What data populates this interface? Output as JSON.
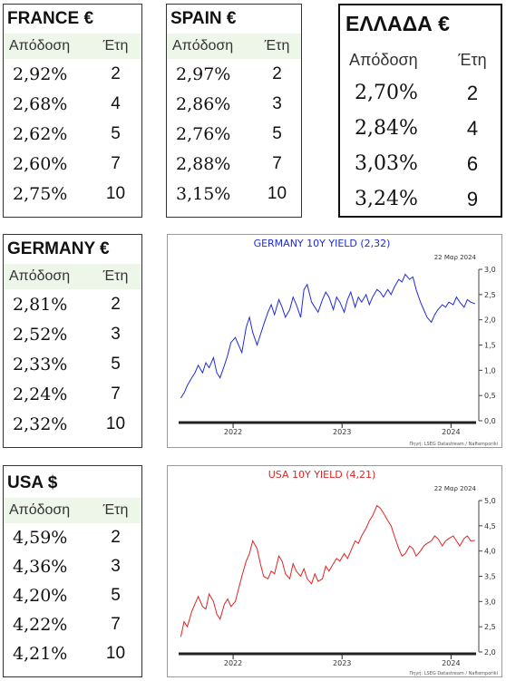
{
  "tables": [
    {
      "id": "france",
      "title": "FRANCE €",
      "h1": "Απόδοση",
      "h2": "Έτη",
      "rows": [
        [
          "2,92%",
          "2"
        ],
        [
          "2,68%",
          "4"
        ],
        [
          "2,62%",
          "5"
        ],
        [
          "2,60%",
          "7"
        ],
        [
          "2,75%",
          "10"
        ]
      ]
    },
    {
      "id": "spain",
      "title": "SPAIN €",
      "h1": "Απόδοση",
      "h2": "Έτη",
      "rows": [
        [
          "2,97%",
          "2"
        ],
        [
          "2,86%",
          "3"
        ],
        [
          "2,76%",
          "5"
        ],
        [
          "2,88%",
          "7"
        ],
        [
          "3,15%",
          "10"
        ]
      ]
    },
    {
      "id": "greece",
      "title": "ΕΛΛΑΔΑ €",
      "h1": "Απόδοση",
      "h2": "Έτη",
      "rows": [
        [
          "2,70%",
          "2"
        ],
        [
          "2,84%",
          "4"
        ],
        [
          "3,03%",
          "6"
        ],
        [
          "3,24%",
          "9"
        ]
      ]
    },
    {
      "id": "germany",
      "title": "GERMANY €",
      "h1": "Απόδοση",
      "h2": "Έτη",
      "rows": [
        [
          "2,81%",
          "2"
        ],
        [
          "2,52%",
          "3"
        ],
        [
          "2,33%",
          "5"
        ],
        [
          "2,24%",
          "7"
        ],
        [
          "2,32%",
          "10"
        ]
      ]
    },
    {
      "id": "usa",
      "title": "USA $",
      "h1": "Απόδοση",
      "h2": "Έτη",
      "rows": [
        [
          "4,59%",
          "2"
        ],
        [
          "4,36%",
          "3"
        ],
        [
          "4,20%",
          "5"
        ],
        [
          "4,22%",
          "7"
        ],
        [
          "4,21%",
          "10"
        ]
      ]
    }
  ],
  "chart_data": [
    {
      "type": "line",
      "title": "GERMANY 10Y YIELD  (2,32)",
      "date": "22 Μαρ 2024",
      "source": "Πηγή: LSEG Datastream / Naftemporiki",
      "color": "#1f2bd6",
      "xlim": [
        2021.5,
        2024.23
      ],
      "ylim": [
        0,
        3
      ],
      "y_ticks": [
        "0,0",
        "0,5",
        "1,0",
        "1,5",
        "2,0",
        "2,5",
        "3,0"
      ],
      "x_ticks": [
        {
          "label": "2022",
          "x": 2022
        },
        {
          "label": "2023",
          "x": 2023
        },
        {
          "label": "2024",
          "x": 2024
        }
      ],
      "series": [
        {
          "x": [
            2021.52,
            2021.55,
            2021.58,
            2021.62,
            2021.65,
            2021.68,
            2021.72,
            2021.75,
            2021.78,
            2021.82,
            2021.85,
            2021.88,
            2021.92,
            2021.95,
            2021.98,
            2022.02,
            2022.05,
            2022.08,
            2022.12,
            2022.15,
            2022.18,
            2022.22,
            2022.25,
            2022.28,
            2022.32,
            2022.35,
            2022.38,
            2022.42,
            2022.45,
            2022.48,
            2022.52,
            2022.55,
            2022.58,
            2022.62,
            2022.65,
            2022.68,
            2022.72,
            2022.75,
            2022.78,
            2022.82,
            2022.85,
            2022.88,
            2022.92,
            2022.95,
            2022.98,
            2023.02,
            2023.05,
            2023.08,
            2023.12,
            2023.15,
            2023.18,
            2023.22,
            2023.25,
            2023.28,
            2023.32,
            2023.35,
            2023.38,
            2023.42,
            2023.45,
            2023.48,
            2023.52,
            2023.55,
            2023.58,
            2023.62,
            2023.65,
            2023.68,
            2023.72,
            2023.75,
            2023.78,
            2023.82,
            2023.85,
            2023.88,
            2023.92,
            2023.95,
            2023.98,
            2024.02,
            2024.05,
            2024.08,
            2024.12,
            2024.15,
            2024.18,
            2024.22
          ],
          "y": [
            0.45,
            0.55,
            0.7,
            0.85,
            0.95,
            1.1,
            0.95,
            1.15,
            1.05,
            1.25,
            0.95,
            0.85,
            1.1,
            1.3,
            1.55,
            1.65,
            1.5,
            1.35,
            1.85,
            2.05,
            1.75,
            1.5,
            1.7,
            1.9,
            2.15,
            2.3,
            2.1,
            2.4,
            2.25,
            2.05,
            2.2,
            2.45,
            2.3,
            2.05,
            2.6,
            2.7,
            2.35,
            2.25,
            2.15,
            2.4,
            2.55,
            2.45,
            2.2,
            2.45,
            2.35,
            2.15,
            2.4,
            2.55,
            2.25,
            2.45,
            2.35,
            2.5,
            2.3,
            2.45,
            2.6,
            2.55,
            2.45,
            2.6,
            2.5,
            2.65,
            2.8,
            2.75,
            2.9,
            2.8,
            2.85,
            2.6,
            2.35,
            2.2,
            2.05,
            1.95,
            2.1,
            2.2,
            2.3,
            2.25,
            2.35,
            2.3,
            2.45,
            2.35,
            2.25,
            2.4,
            2.35,
            2.32
          ]
        }
      ]
    },
    {
      "type": "line",
      "title": "USA 10Y YIELD  (4,21)",
      "date": "22 Μαρ 2024",
      "source": "Πηγή: LSEG Datastream / Naftemporiki",
      "color": "#e02323",
      "xlim": [
        2021.5,
        2024.23
      ],
      "ylim": [
        2,
        5
      ],
      "y_ticks": [
        "2,0",
        "2,5",
        "3,0",
        "3,5",
        "4,0",
        "4,5",
        "5,0"
      ],
      "x_ticks": [
        {
          "label": "2022",
          "x": 2022
        },
        {
          "label": "2023",
          "x": 2023
        },
        {
          "label": "2024",
          "x": 2024
        }
      ],
      "series": [
        {
          "x": [
            2021.52,
            2021.55,
            2021.58,
            2021.62,
            2021.65,
            2021.68,
            2021.72,
            2021.75,
            2021.78,
            2021.82,
            2021.85,
            2021.88,
            2021.92,
            2021.95,
            2021.98,
            2022.02,
            2022.05,
            2022.08,
            2022.12,
            2022.15,
            2022.18,
            2022.22,
            2022.25,
            2022.28,
            2022.32,
            2022.35,
            2022.38,
            2022.42,
            2022.45,
            2022.48,
            2022.52,
            2022.55,
            2022.58,
            2022.62,
            2022.65,
            2022.68,
            2022.72,
            2022.75,
            2022.78,
            2022.82,
            2022.85,
            2022.88,
            2022.92,
            2022.95,
            2022.98,
            2023.02,
            2023.05,
            2023.08,
            2023.12,
            2023.15,
            2023.18,
            2023.22,
            2023.25,
            2023.28,
            2023.32,
            2023.35,
            2023.38,
            2023.42,
            2023.45,
            2023.48,
            2023.52,
            2023.55,
            2023.58,
            2023.62,
            2023.65,
            2023.68,
            2023.72,
            2023.75,
            2023.78,
            2023.82,
            2023.85,
            2023.88,
            2023.92,
            2023.95,
            2023.98,
            2024.02,
            2024.05,
            2024.08,
            2024.12,
            2024.15,
            2024.18,
            2024.22
          ],
          "y": [
            2.3,
            2.6,
            2.5,
            2.8,
            2.95,
            3.1,
            2.9,
            2.85,
            3.15,
            3.0,
            2.75,
            2.65,
            2.95,
            3.05,
            2.9,
            3.0,
            3.25,
            3.5,
            3.8,
            3.95,
            4.2,
            4.05,
            3.75,
            3.5,
            3.45,
            3.6,
            3.55,
            3.9,
            3.8,
            3.55,
            3.45,
            3.75,
            3.6,
            3.5,
            3.65,
            3.45,
            3.35,
            3.55,
            3.4,
            3.45,
            3.7,
            3.6,
            3.75,
            3.85,
            3.8,
            3.95,
            3.85,
            4.0,
            4.2,
            4.15,
            4.3,
            4.45,
            4.6,
            4.7,
            4.9,
            4.85,
            4.75,
            4.6,
            4.5,
            4.3,
            4.05,
            3.9,
            3.95,
            4.1,
            4.05,
            3.9,
            4.0,
            4.1,
            4.15,
            4.2,
            4.3,
            4.25,
            4.1,
            4.2,
            4.25,
            4.3,
            4.2,
            4.1,
            4.25,
            4.3,
            4.2,
            4.21
          ]
        }
      ]
    }
  ]
}
